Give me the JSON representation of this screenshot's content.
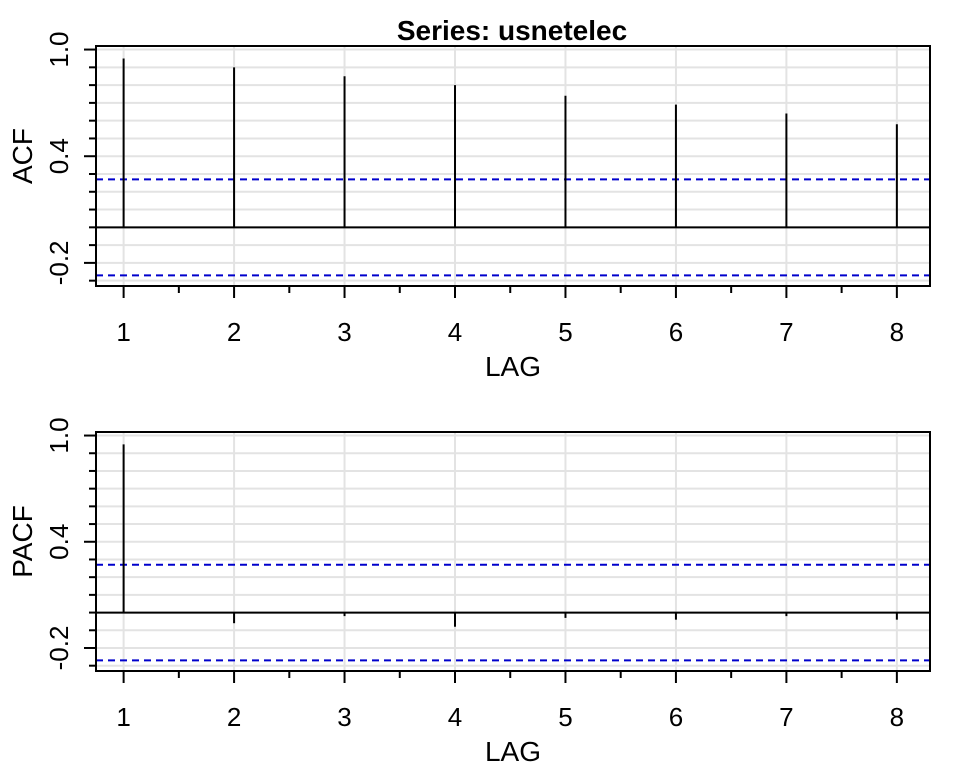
{
  "title": "Series:  usnetelec",
  "colors": {
    "confidence": "#0000cc",
    "grid": "#e3e3e3",
    "bars": "#000000"
  },
  "chart_data": [
    {
      "type": "bar",
      "name": "ACF",
      "ylabel": "ACF",
      "xlabel": "LAG",
      "x": [
        1,
        2,
        3,
        4,
        5,
        6,
        7,
        8
      ],
      "values": [
        0.95,
        0.9,
        0.85,
        0.8,
        0.74,
        0.69,
        0.64,
        0.58
      ],
      "ylim": [
        -0.33,
        1.02
      ],
      "xlim": [
        0.75,
        8.3
      ],
      "y_tick_labels": [
        -0.2,
        0.4,
        1.0
      ],
      "y_minor_ticks": [
        -0.3,
        -0.2,
        -0.1,
        0.0,
        0.1,
        0.2,
        0.3,
        0.4,
        0.5,
        0.6,
        0.7,
        0.8,
        0.9,
        1.0
      ],
      "x_tick_labels": [
        1,
        2,
        3,
        4,
        5,
        6,
        7,
        8
      ],
      "x_minor_ticks": [
        1,
        1.5,
        2,
        2.5,
        3,
        3.5,
        4,
        4.5,
        5,
        5.5,
        6,
        6.5,
        7,
        7.5,
        8
      ],
      "grid": true,
      "confidence_bounds": [
        0.27,
        -0.27
      ]
    },
    {
      "type": "bar",
      "name": "PACF",
      "ylabel": "PACF",
      "xlabel": "LAG",
      "x": [
        1,
        2,
        3,
        4,
        5,
        6,
        7,
        8
      ],
      "values": [
        0.95,
        -0.06,
        -0.02,
        -0.08,
        -0.03,
        -0.04,
        -0.02,
        -0.04
      ],
      "ylim": [
        -0.33,
        1.02
      ],
      "xlim": [
        0.75,
        8.3
      ],
      "y_tick_labels": [
        -0.2,
        0.4,
        1.0
      ],
      "y_minor_ticks": [
        -0.3,
        -0.2,
        -0.1,
        0.0,
        0.1,
        0.2,
        0.3,
        0.4,
        0.5,
        0.6,
        0.7,
        0.8,
        0.9,
        1.0
      ],
      "x_tick_labels": [
        1,
        2,
        3,
        4,
        5,
        6,
        7,
        8
      ],
      "x_minor_ticks": [
        1,
        1.5,
        2,
        2.5,
        3,
        3.5,
        4,
        4.5,
        5,
        5.5,
        6,
        6.5,
        7,
        7.5,
        8
      ],
      "grid": true,
      "confidence_bounds": [
        0.27,
        -0.27
      ]
    }
  ]
}
